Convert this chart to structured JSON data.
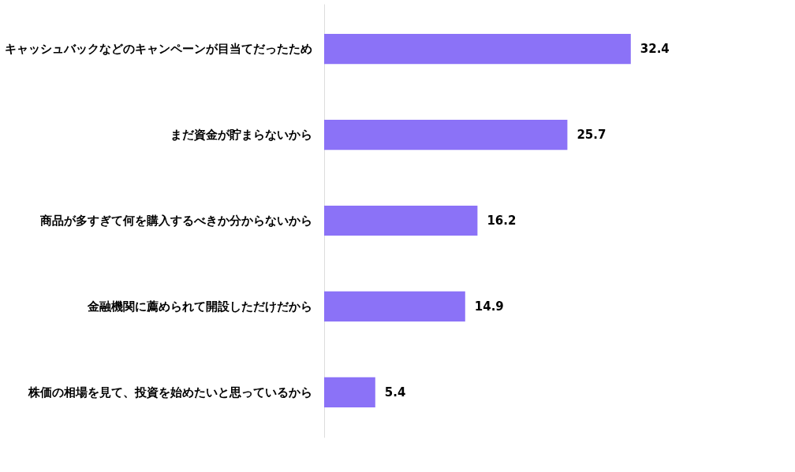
{
  "chart_data": {
    "type": "bar",
    "orientation": "horizontal",
    "categories": [
      "キャッシュバックなどのキャンペーンが目当てだったため",
      "まだ資金が貯まらないから",
      "商品が多すぎて何を購入するべきか分からないから",
      "金融機関に薦められて開設しただけだから",
      "株価の相場を見て、投資を始めたいと思っているから"
    ],
    "values": [
      32.4,
      25.7,
      16.2,
      14.9,
      5.4
    ],
    "color": "#8b72f7",
    "data_labels": true,
    "grid": false
  }
}
